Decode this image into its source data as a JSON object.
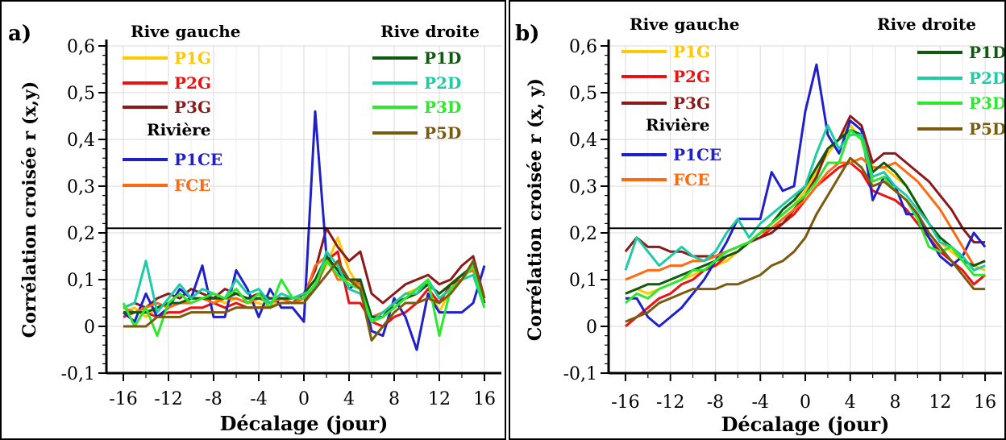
{
  "chart_data": [
    {
      "panel_label": "a)",
      "type": "line",
      "xlabel": "Décalage (jour)",
      "ylabel": "Corrélation croisée r (x,y)",
      "xlim": [
        -17.5,
        17.5
      ],
      "ylim": [
        -0.1,
        0.6
      ],
      "xticks": [
        "-16",
        "-12",
        "-8",
        "-4",
        "0",
        "4",
        "8",
        "12",
        "16"
      ],
      "yticks": [
        "-0,1",
        "0",
        "0,1",
        "0,2",
        "0,3",
        "0,4",
        "0,5",
        "0,6"
      ],
      "threshold": 0.21,
      "grid": true,
      "legend_headings": {
        "left": "Rive gauche",
        "middle": "Rivière",
        "right": "Rive droite"
      },
      "x": [
        -16,
        -15,
        -14,
        -13,
        -12,
        -11,
        -10,
        -9,
        -8,
        -7,
        -6,
        -5,
        -4,
        -3,
        -2,
        -1,
        0,
        1,
        2,
        3,
        4,
        5,
        6,
        7,
        8,
        9,
        10,
        11,
        12,
        13,
        14,
        15,
        16
      ],
      "series": [
        {
          "name": "P1G",
          "color": "#FFC800",
          "group": "left",
          "values": [
            0.03,
            0.04,
            0.02,
            0.04,
            0.05,
            0.05,
            0.06,
            0.06,
            0.06,
            0.05,
            0.06,
            0.05,
            0.05,
            0.04,
            0.06,
            0.05,
            0.06,
            0.09,
            0.13,
            0.19,
            0.12,
            0.08,
            0.01,
            0.03,
            0.05,
            0.07,
            0.08,
            0.09,
            0.03,
            0.08,
            0.11,
            0.12,
            0.05
          ]
        },
        {
          "name": "P2G",
          "color": "#EE1111",
          "group": "left",
          "values": [
            0.02,
            0.03,
            0.03,
            0.02,
            0.03,
            0.03,
            0.04,
            0.04,
            0.05,
            0.04,
            0.05,
            0.04,
            0.04,
            0.04,
            0.05,
            0.05,
            0.06,
            0.08,
            0.14,
            0.16,
            0.05,
            0.05,
            0.01,
            0.0,
            0.02,
            0.03,
            0.05,
            0.08,
            0.05,
            0.09,
            0.1,
            0.13,
            0.05
          ]
        },
        {
          "name": "P3G",
          "color": "#8B1A1A",
          "group": "left",
          "values": [
            0.04,
            0.05,
            0.04,
            0.06,
            0.07,
            0.06,
            0.08,
            0.07,
            0.06,
            0.08,
            0.07,
            0.06,
            0.07,
            0.06,
            0.06,
            0.05,
            0.07,
            0.12,
            0.21,
            0.17,
            0.14,
            0.16,
            0.07,
            0.05,
            0.07,
            0.09,
            0.1,
            0.11,
            0.09,
            0.1,
            0.13,
            0.15,
            0.06
          ]
        },
        {
          "name": "P1CE",
          "color": "#2020C8",
          "group": "river",
          "values": [
            0.03,
            0.01,
            0.07,
            0.02,
            0.04,
            0.08,
            0.06,
            0.13,
            0.02,
            0.02,
            0.12,
            0.08,
            0.02,
            0.08,
            0.04,
            0.04,
            0.01,
            0.46,
            0.15,
            0.12,
            0.08,
            0.1,
            -0.01,
            -0.02,
            0.06,
            0.02,
            -0.05,
            0.07,
            0.03,
            0.03,
            0.03,
            0.05,
            0.13
          ]
        },
        {
          "name": "FCE",
          "color": "#FF6A10",
          "group": "river",
          "values": [
            0.04,
            0.03,
            0.04,
            0.05,
            0.04,
            0.05,
            0.05,
            0.06,
            0.05,
            0.06,
            0.06,
            0.05,
            0.06,
            0.05,
            0.06,
            0.05,
            0.06,
            0.13,
            0.15,
            0.1,
            0.1,
            0.09,
            0.02,
            0.03,
            0.05,
            0.06,
            0.07,
            0.09,
            0.07,
            0.09,
            0.11,
            0.12,
            0.05
          ]
        },
        {
          "name": "P1D",
          "color": "#0F5A0F",
          "group": "right",
          "values": [
            0.03,
            0.03,
            0.03,
            0.04,
            0.05,
            0.05,
            0.06,
            0.06,
            0.06,
            0.06,
            0.07,
            0.06,
            0.06,
            0.06,
            0.06,
            0.06,
            0.07,
            0.1,
            0.15,
            0.12,
            0.1,
            0.1,
            0.02,
            0.02,
            0.05,
            0.06,
            0.07,
            0.09,
            0.07,
            0.09,
            0.11,
            0.13,
            0.05
          ]
        },
        {
          "name": "P2D",
          "color": "#1ECBA5",
          "group": "right",
          "values": [
            0.04,
            0.05,
            0.14,
            0.03,
            0.06,
            0.09,
            0.06,
            0.08,
            0.07,
            0.06,
            0.1,
            0.07,
            0.08,
            0.05,
            0.07,
            0.06,
            0.07,
            0.08,
            0.16,
            0.13,
            0.08,
            0.07,
            0.01,
            0.03,
            0.05,
            0.07,
            0.07,
            0.1,
            0.06,
            0.08,
            0.1,
            0.11,
            0.04
          ]
        },
        {
          "name": "P3D",
          "color": "#2EE82E",
          "group": "right",
          "values": [
            0.05,
            0.0,
            0.04,
            -0.02,
            0.05,
            0.07,
            0.05,
            0.06,
            0.07,
            0.06,
            0.08,
            0.05,
            0.07,
            0.04,
            0.1,
            0.06,
            0.06,
            0.09,
            0.14,
            0.11,
            0.09,
            0.08,
            0.01,
            0.02,
            0.04,
            0.06,
            0.08,
            0.1,
            -0.02,
            0.08,
            0.1,
            0.13,
            0.04
          ]
        },
        {
          "name": "P5D",
          "color": "#7A5A0E",
          "group": "right",
          "values": [
            0.0,
            0.0,
            0.0,
            0.02,
            0.02,
            0.02,
            0.03,
            0.03,
            0.03,
            0.03,
            0.04,
            0.04,
            0.04,
            0.04,
            0.05,
            0.05,
            0.05,
            0.08,
            0.11,
            0.14,
            0.1,
            0.08,
            -0.03,
            0.0,
            0.03,
            0.05,
            0.05,
            0.06,
            0.05,
            0.07,
            0.1,
            0.14,
            0.06
          ]
        }
      ]
    },
    {
      "panel_label": "b)",
      "type": "line",
      "xlabel": "Décalage (jour)",
      "ylabel": "Corrélation croisée r (x, y)",
      "xlim": [
        -17.5,
        17.5
      ],
      "ylim": [
        -0.1,
        0.6
      ],
      "xticks": [
        "-16",
        "-12",
        "-8",
        "-4",
        "0",
        "4",
        "8",
        "12",
        "16"
      ],
      "yticks": [
        "-0,1",
        "0",
        "0,1",
        "0,2",
        "0,3",
        "0,4",
        "0,5",
        "0,6"
      ],
      "threshold": 0.21,
      "grid": true,
      "legend_headings": {
        "left": "Rive gauche",
        "middle": "Rivière",
        "right": "Rive droite"
      },
      "x": [
        -16,
        -15,
        -14,
        -13,
        -12,
        -11,
        -10,
        -9,
        -8,
        -7,
        -6,
        -5,
        -4,
        -3,
        -2,
        -1,
        0,
        1,
        2,
        3,
        4,
        5,
        6,
        7,
        8,
        9,
        10,
        11,
        12,
        13,
        14,
        15,
        16
      ],
      "series": [
        {
          "name": "P1G",
          "color": "#FFC800",
          "group": "left",
          "values": [
            0.07,
            0.08,
            0.07,
            0.08,
            0.09,
            0.1,
            0.11,
            0.12,
            0.13,
            0.14,
            0.16,
            0.18,
            0.2,
            0.22,
            0.24,
            0.26,
            0.29,
            0.33,
            0.37,
            0.4,
            0.43,
            0.4,
            0.34,
            0.34,
            0.32,
            0.3,
            0.26,
            0.22,
            0.18,
            0.16,
            0.14,
            0.13,
            0.12
          ]
        },
        {
          "name": "P2G",
          "color": "#EE1111",
          "group": "left",
          "values": [
            0.0,
            0.02,
            0.04,
            0.06,
            0.07,
            0.09,
            0.1,
            0.12,
            0.13,
            0.15,
            0.16,
            0.18,
            0.19,
            0.21,
            0.22,
            0.24,
            0.27,
            0.3,
            0.32,
            0.34,
            0.35,
            0.33,
            0.29,
            0.28,
            0.27,
            0.25,
            0.22,
            0.19,
            0.16,
            0.14,
            0.12,
            0.09,
            0.11
          ]
        },
        {
          "name": "P3G",
          "color": "#8B1A1A",
          "group": "left",
          "values": [
            0.16,
            0.19,
            0.17,
            0.17,
            0.16,
            0.16,
            0.15,
            0.15,
            0.15,
            0.16,
            0.17,
            0.18,
            0.19,
            0.2,
            0.22,
            0.25,
            0.28,
            0.32,
            0.38,
            0.4,
            0.45,
            0.43,
            0.35,
            0.37,
            0.37,
            0.35,
            0.33,
            0.31,
            0.28,
            0.25,
            0.21,
            0.18,
            0.18
          ]
        },
        {
          "name": "P1CE",
          "color": "#2020C8",
          "group": "river",
          "values": [
            0.06,
            0.06,
            0.02,
            0.0,
            0.02,
            0.04,
            0.07,
            0.1,
            0.14,
            0.18,
            0.23,
            0.23,
            0.23,
            0.33,
            0.29,
            0.3,
            0.46,
            0.56,
            0.41,
            0.37,
            0.44,
            0.42,
            0.27,
            0.32,
            0.3,
            0.24,
            0.24,
            0.19,
            0.15,
            0.13,
            0.15,
            0.2,
            0.17
          ]
        },
        {
          "name": "FCE",
          "color": "#FF6A10",
          "group": "river",
          "values": [
            0.1,
            0.11,
            0.12,
            0.12,
            0.13,
            0.13,
            0.14,
            0.14,
            0.15,
            0.16,
            0.17,
            0.18,
            0.2,
            0.21,
            0.23,
            0.25,
            0.27,
            0.3,
            0.33,
            0.35,
            0.35,
            0.36,
            0.34,
            0.34,
            0.35,
            0.33,
            0.31,
            0.28,
            0.25,
            0.21,
            0.17,
            0.13,
            0.14
          ]
        },
        {
          "name": "P1D",
          "color": "#0F5A0F",
          "group": "right",
          "values": [
            0.07,
            0.08,
            0.09,
            0.09,
            0.1,
            0.11,
            0.12,
            0.13,
            0.14,
            0.15,
            0.16,
            0.18,
            0.2,
            0.22,
            0.25,
            0.27,
            0.3,
            0.34,
            0.38,
            0.4,
            0.42,
            0.41,
            0.33,
            0.35,
            0.33,
            0.3,
            0.26,
            0.22,
            0.19,
            0.17,
            0.14,
            0.13,
            0.14
          ]
        },
        {
          "name": "P2D",
          "color": "#1ECBA5",
          "group": "right",
          "values": [
            0.12,
            0.19,
            0.16,
            0.13,
            0.15,
            0.17,
            0.15,
            0.14,
            0.16,
            0.2,
            0.23,
            0.19,
            0.22,
            0.24,
            0.26,
            0.28,
            0.3,
            0.37,
            0.43,
            0.38,
            0.41,
            0.41,
            0.32,
            0.33,
            0.3,
            0.28,
            0.25,
            0.22,
            0.18,
            0.17,
            0.15,
            0.12,
            0.13
          ]
        },
        {
          "name": "P3D",
          "color": "#2EE82E",
          "group": "right",
          "values": [
            0.05,
            0.07,
            0.06,
            0.08,
            0.09,
            0.1,
            0.12,
            0.12,
            0.14,
            0.16,
            0.17,
            0.18,
            0.2,
            0.22,
            0.24,
            0.26,
            0.28,
            0.31,
            0.35,
            0.35,
            0.42,
            0.4,
            0.31,
            0.32,
            0.29,
            0.27,
            0.23,
            0.17,
            0.16,
            0.17,
            0.14,
            0.11,
            0.11
          ]
        },
        {
          "name": "P5D",
          "color": "#7A5A0E",
          "group": "right",
          "values": [
            0.01,
            0.02,
            0.03,
            0.05,
            0.06,
            0.07,
            0.08,
            0.08,
            0.08,
            0.09,
            0.09,
            0.1,
            0.11,
            0.13,
            0.14,
            0.16,
            0.19,
            0.24,
            0.28,
            0.32,
            0.36,
            0.34,
            0.3,
            0.31,
            0.29,
            0.27,
            0.24,
            0.2,
            0.17,
            0.14,
            0.11,
            0.08,
            0.08
          ]
        }
      ]
    }
  ]
}
